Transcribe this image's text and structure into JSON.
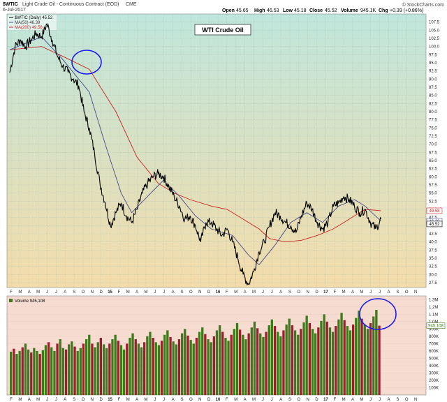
{
  "header": {
    "symbol": "$WTIC",
    "description": "Light Crude Oil - Continuous Contract (EOD)",
    "exchange": "CME",
    "date": "6-Jul-2017",
    "watermark": "© StockCharts.com",
    "quote": {
      "open_label": "Open",
      "open": "45.65",
      "high_label": "High",
      "high": "46.53",
      "low_label": "Low",
      "low": "45.18",
      "close_label": "Close",
      "close": "45.52",
      "volume_label": "Volume",
      "volume": "945.1K",
      "chg_label": "Chg",
      "chg": "+0.39 (+0.86%)"
    }
  },
  "legend": {
    "price": "$WTIC (Daily) 45.52",
    "ma50": "MA(50) 46.39",
    "ma200": "MA(200) 49.58",
    "volume": "Volume 945,108"
  },
  "annotation": {
    "title": "WTI Crude Oil"
  },
  "colors": {
    "price": "#000000",
    "ma50": "#4a4a8a",
    "ma200": "#cc2222",
    "circle": "#1a1aee",
    "vol_up": "#3c7a1a",
    "vol_down": "#9c1f2f",
    "bg_top": "#bfe6dc",
    "bg_bottom": "#f4dcaa",
    "vol_bg": "#f6dcd0"
  },
  "chart_data": {
    "type": "line",
    "x_tick_labels": [
      "F",
      "M",
      "A",
      "M",
      "J",
      "J",
      "A",
      "S",
      "O",
      "N",
      "D",
      "15",
      "F",
      "M",
      "A",
      "M",
      "J",
      "J",
      "A",
      "S",
      "O",
      "N",
      "D",
      "16",
      "F",
      "M",
      "A",
      "M",
      "J",
      "J",
      "A",
      "S",
      "O",
      "N",
      "D",
      "17",
      "F",
      "M",
      "A",
      "M",
      "J",
      "J",
      "A",
      "S",
      "O",
      "N"
    ],
    "y_range": [
      26.0,
      110.0
    ],
    "y_ticks": [
      "27.5",
      "30.0",
      "32.5",
      "35.0",
      "37.5",
      "40.0",
      "42.5",
      "45.0",
      "47.5",
      "50.0",
      "52.5",
      "55.0",
      "57.5",
      "60.0",
      "62.5",
      "65.0",
      "67.5",
      "70.0",
      "72.5",
      "75.0",
      "77.5",
      "80.0",
      "82.5",
      "85.0",
      "87.5",
      "90.0",
      "92.5",
      "95.0",
      "97.5",
      "100.0",
      "102.5",
      "105.0",
      "107.5"
    ],
    "last_value_tags": [
      "49.58",
      "46.39",
      "45.52"
    ],
    "grid": true,
    "series": [
      {
        "name": "$WTIC (Daily)",
        "points": [
          [
            0,
            92
          ],
          [
            1,
            100
          ],
          [
            2,
            102
          ],
          [
            3,
            100
          ],
          [
            4,
            102
          ],
          [
            5,
            104
          ],
          [
            6,
            103
          ],
          [
            7,
            107
          ],
          [
            8,
            102
          ],
          [
            9,
            97
          ],
          [
            10,
            94
          ],
          [
            11,
            92
          ],
          [
            12,
            90
          ],
          [
            13,
            88
          ],
          [
            14,
            80
          ],
          [
            15,
            75
          ],
          [
            16,
            67
          ],
          [
            17,
            58
          ],
          [
            18,
            52
          ],
          [
            19,
            45
          ],
          [
            20,
            49
          ],
          [
            21,
            52
          ],
          [
            22,
            48
          ],
          [
            23,
            46
          ],
          [
            24,
            50
          ],
          [
            25,
            55
          ],
          [
            26,
            58
          ],
          [
            27,
            60
          ],
          [
            28,
            61
          ],
          [
            29,
            60
          ],
          [
            30,
            57
          ],
          [
            31,
            54
          ],
          [
            32,
            51
          ],
          [
            33,
            47
          ],
          [
            34,
            48
          ],
          [
            35,
            45
          ],
          [
            36,
            40
          ],
          [
            37,
            46
          ],
          [
            38,
            46
          ],
          [
            39,
            44
          ],
          [
            40,
            42
          ],
          [
            41,
            44
          ],
          [
            42,
            40
          ],
          [
            43,
            35
          ],
          [
            44,
            30
          ],
          [
            45,
            27
          ],
          [
            46,
            31
          ],
          [
            47,
            37
          ],
          [
            48,
            40
          ],
          [
            49,
            45
          ],
          [
            50,
            49
          ],
          [
            51,
            48
          ],
          [
            52,
            46
          ],
          [
            53,
            45
          ],
          [
            54,
            43
          ],
          [
            55,
            48
          ],
          [
            56,
            52
          ],
          [
            57,
            50
          ],
          [
            58,
            46
          ],
          [
            59,
            44
          ],
          [
            60,
            46
          ],
          [
            61,
            51
          ],
          [
            62,
            52
          ],
          [
            63,
            54
          ],
          [
            64,
            53
          ],
          [
            65,
            51
          ],
          [
            66,
            49
          ],
          [
            67,
            50
          ],
          [
            68,
            46
          ],
          [
            69,
            44
          ],
          [
            70,
            47
          ]
        ]
      },
      {
        "name": "MA(50)",
        "points": [
          [
            0,
            99
          ],
          [
            6,
            103
          ],
          [
            10,
            96
          ],
          [
            15,
            86
          ],
          [
            18,
            70
          ],
          [
            21,
            55
          ],
          [
            23,
            49
          ],
          [
            26,
            54
          ],
          [
            29,
            59
          ],
          [
            32,
            54
          ],
          [
            35,
            48
          ],
          [
            38,
            44
          ],
          [
            42,
            42
          ],
          [
            45,
            36
          ],
          [
            47,
            33
          ],
          [
            50,
            39
          ],
          [
            53,
            46
          ],
          [
            56,
            49
          ],
          [
            59,
            46
          ],
          [
            62,
            51
          ],
          [
            65,
            53
          ],
          [
            67,
            51
          ],
          [
            70,
            46.4
          ]
        ]
      },
      {
        "name": "MA(200)",
        "points": [
          [
            0,
            99
          ],
          [
            6,
            100
          ],
          [
            10,
            97
          ],
          [
            15,
            93
          ],
          [
            20,
            80
          ],
          [
            24,
            66
          ],
          [
            28,
            58
          ],
          [
            31,
            55
          ],
          [
            34,
            53
          ],
          [
            38,
            51
          ],
          [
            41,
            50
          ],
          [
            44,
            47
          ],
          [
            47,
            44
          ],
          [
            49,
            41
          ],
          [
            52,
            40
          ],
          [
            55,
            40.5
          ],
          [
            58,
            42
          ],
          [
            61,
            44
          ],
          [
            63,
            46
          ],
          [
            65,
            48
          ],
          [
            67,
            50
          ],
          [
            70,
            49.6
          ]
        ]
      }
    ],
    "volume": {
      "y_ticks": [
        "100K",
        "200K",
        "300K",
        "400K",
        "500K",
        "600K",
        "700K",
        "800K",
        "900K",
        "1.0M",
        "1.1M",
        "1.2M",
        "1.3M"
      ],
      "y_range": [
        0,
        1350000
      ],
      "last_tag": "945,108",
      "values": [
        590,
        630,
        560,
        600,
        650,
        700,
        620,
        580,
        640,
        600,
        560,
        610,
        680,
        720,
        650,
        600,
        700,
        760,
        640,
        620,
        690,
        730,
        660,
        600,
        640,
        700,
        760,
        820,
        700,
        650,
        720,
        780,
        690,
        640,
        700,
        760,
        820,
        740,
        680,
        620,
        700,
        780,
        840,
        760,
        700,
        650,
        720,
        800,
        860,
        780,
        720,
        680,
        740,
        820,
        880,
        790,
        730,
        690,
        760,
        840,
        900,
        810,
        750,
        700,
        780,
        860,
        920,
        830,
        760,
        720,
        800,
        880,
        950,
        860,
        780,
        740,
        820,
        900,
        980,
        890,
        820,
        760,
        840,
        920,
        1000,
        910,
        840,
        790,
        860,
        950,
        1030,
        940,
        860,
        800,
        880,
        960,
        1040,
        950,
        880,
        820,
        900,
        990,
        1080,
        980,
        900,
        840,
        920,
        1010,
        1100,
        1000,
        920,
        860,
        940,
        1030,
        1120,
        1020,
        940,
        880,
        960,
        1050,
        1150,
        1040,
        960,
        900,
        980,
        1070,
        1160,
        945
      ]
    }
  }
}
